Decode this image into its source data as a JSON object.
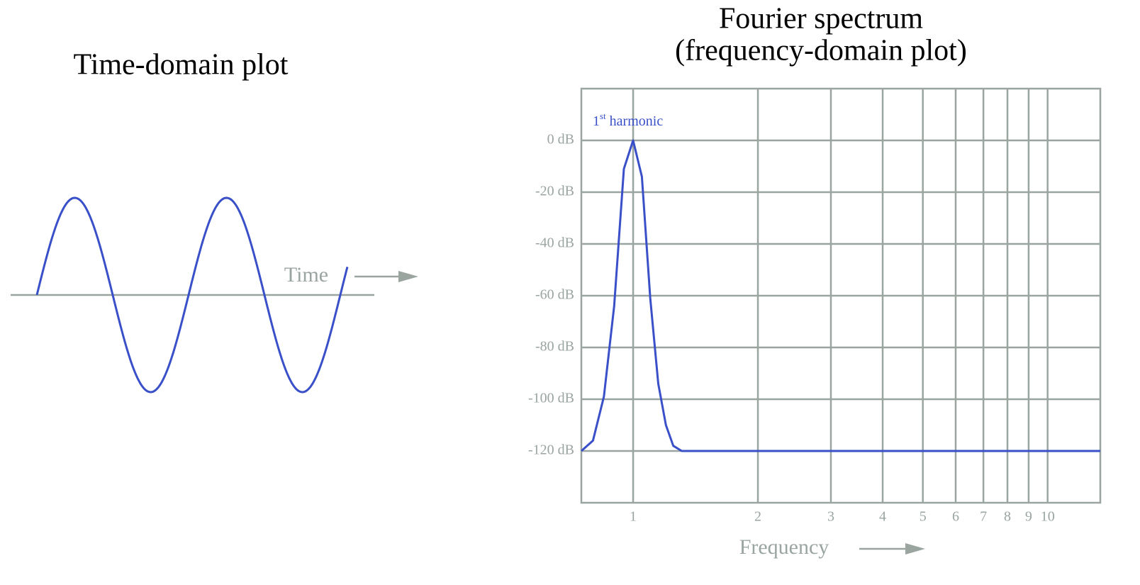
{
  "chart_data": [
    {
      "type": "wave",
      "title": "Time-domain plot",
      "x_label": "Time",
      "color": "#3a50c8"
    },
    {
      "type": "line",
      "title": "Fourier spectrum",
      "subtitle": "(frequency-domain plot)",
      "x_label": "Frequency",
      "x_log": true,
      "grid": true,
      "xlim": [
        0.75,
        13.4
      ],
      "xticks": [
        1,
        2,
        3,
        4,
        5,
        6,
        7,
        8,
        9,
        10
      ],
      "ylim": [
        -140,
        20
      ],
      "yticks": [
        {
          "value": 0,
          "label": "0 dB"
        },
        {
          "value": -20,
          "label": "-20 dB"
        },
        {
          "value": -40,
          "label": "-40 dB"
        },
        {
          "value": -60,
          "label": "-60 dB"
        },
        {
          "value": -80,
          "label": "-80 dB"
        },
        {
          "value": -100,
          "label": "-100 dB"
        },
        {
          "value": -120,
          "label": "-120 dB"
        }
      ],
      "annotation": [
        "1",
        "st",
        "harmonic"
      ],
      "series": [
        {
          "color": "#3a50c8",
          "x": [
            0.75,
            0.8,
            0.85,
            0.9,
            0.95,
            1,
            1.05,
            1.1,
            1.15,
            1.2,
            1.25,
            1.31,
            13.4
          ],
          "values": [
            -120,
            -116,
            -99,
            -64,
            -11,
            0,
            -14,
            -61,
            -94,
            -110,
            -118,
            -120,
            -120
          ]
        }
      ]
    }
  ]
}
